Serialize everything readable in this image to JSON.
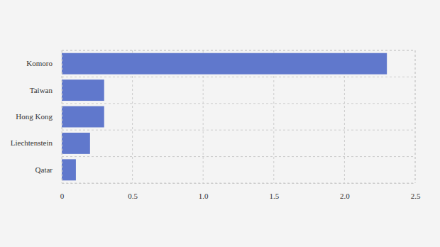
{
  "chart_data": {
    "type": "bar",
    "orientation": "horizontal",
    "categories": [
      "Komoro",
      "Taiwan",
      "Hong Kong",
      "Liechtenstein",
      "Qatar"
    ],
    "values": [
      2.3,
      0.3,
      0.3,
      0.2,
      0.1
    ],
    "color": "#6078cc",
    "xlim": [
      0,
      2.5
    ],
    "xticks": [
      0,
      0.5,
      {
        "value": 1,
        "label": "1.0"
      },
      1.5,
      {
        "value": 2,
        "label": "2.0"
      },
      2.5
    ],
    "grid": true
  }
}
